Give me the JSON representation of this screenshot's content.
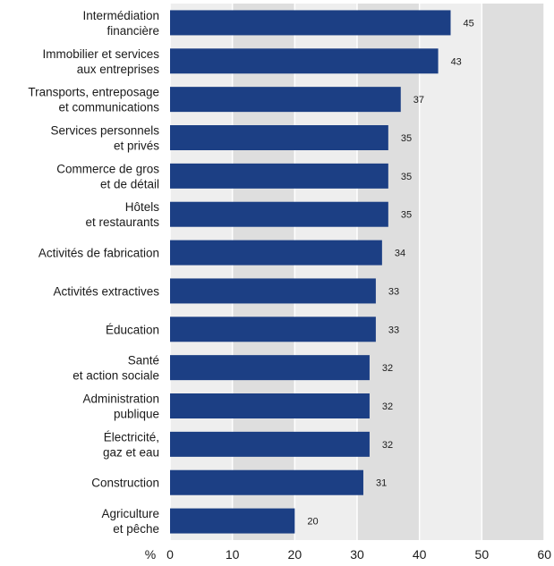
{
  "chart_data": {
    "type": "bar",
    "orientation": "horizontal",
    "categories": [
      [
        "Intermédiation",
        "financière"
      ],
      [
        "Immobilier et services",
        "aux entreprises"
      ],
      [
        "Transports, entreposage",
        "et communications"
      ],
      [
        "Services personnels",
        "et privés"
      ],
      [
        "Commerce de gros",
        "et de détail"
      ],
      [
        "Hôtels",
        "et restaurants"
      ],
      [
        "Activités de fabrication"
      ],
      [
        "Activités extractives"
      ],
      [
        "Éducation"
      ],
      [
        "Santé",
        "et action sociale"
      ],
      [
        "Administration",
        "publique"
      ],
      [
        "Électricité,",
        "gaz et eau"
      ],
      [
        "Construction"
      ],
      [
        "Agriculture",
        "et pêche"
      ]
    ],
    "values": [
      45,
      43,
      37,
      35,
      35,
      35,
      34,
      33,
      33,
      32,
      32,
      32,
      31,
      20
    ],
    "data_labels": [
      "45",
      "43",
      "37",
      "35",
      "35",
      "35",
      "34",
      "33",
      "33",
      "32",
      "32",
      "32",
      "31",
      "20"
    ],
    "xlim": [
      0,
      60
    ],
    "x_ticks": [
      "0",
      "10",
      "20",
      "30",
      "40",
      "50",
      "60"
    ],
    "x_tick_values": [
      0,
      10,
      20,
      30,
      40,
      50,
      60
    ],
    "x_unit": "%",
    "title": "",
    "xlabel": "",
    "ylabel": "",
    "grid": "vertical",
    "legend": "none",
    "colors": {
      "bar": "#1c3f84",
      "band_light": "#eeeeee",
      "band_dark": "#dedede",
      "gridline": "#ffffff"
    }
  }
}
